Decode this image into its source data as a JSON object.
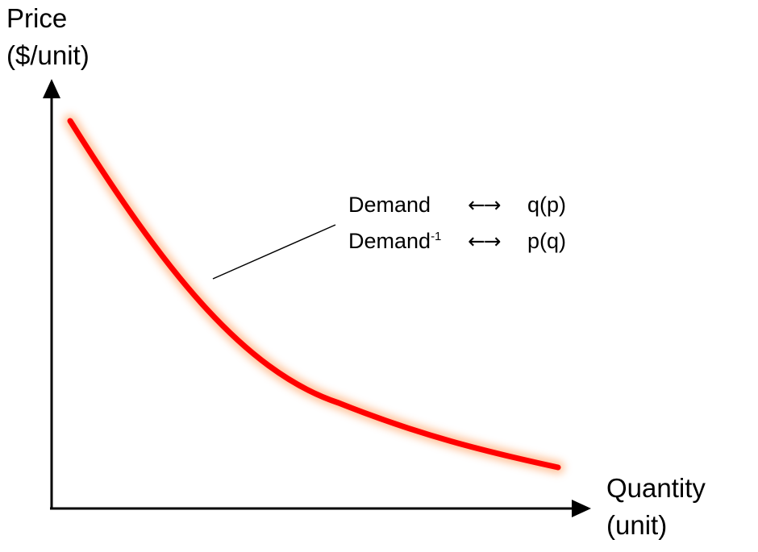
{
  "diagram": {
    "y_axis_label_line1": "Price",
    "y_axis_label_line2": "($/unit)",
    "x_axis_label_line1": "Quantity",
    "x_axis_label_line2": "(unit)",
    "annotation": {
      "row1_term": "Demand",
      "row1_arrow": "←→",
      "row1_function": "q(p)",
      "row2_term": "Demand",
      "row2_superscript": "-1",
      "row2_arrow": "←→",
      "row2_function": "p(q)"
    },
    "colors": {
      "curve": "#ff0000",
      "curve_glow": "#ffc9a0",
      "axes": "#000000"
    }
  }
}
